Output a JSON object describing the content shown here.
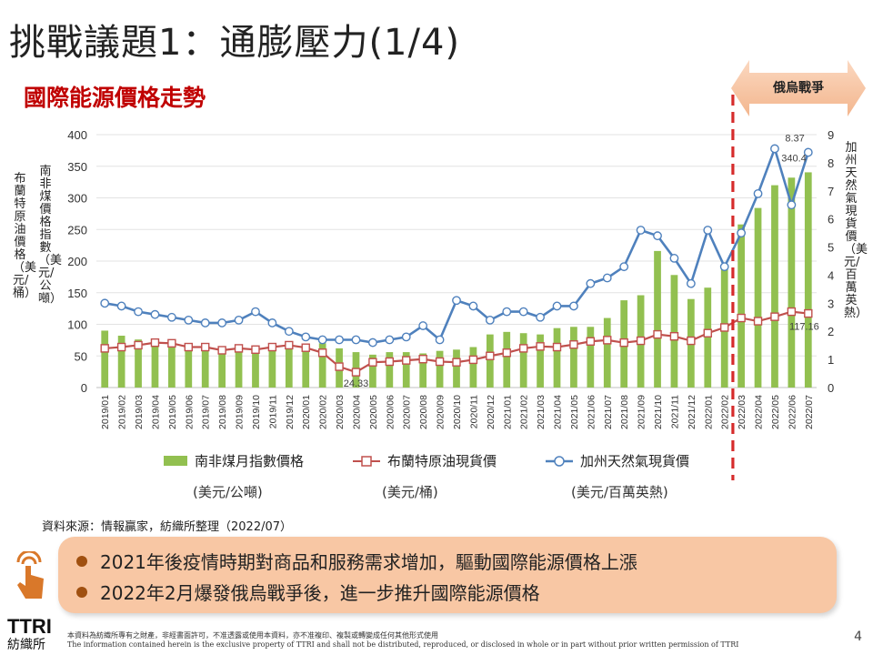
{
  "slide": {
    "title": "挑戰議題1：通膨壓力(1/4)",
    "subtitle": "國際能源價格走勢",
    "war_label": "俄烏戰爭",
    "left_axis_label_1": "布蘭特原油價格（美元/桶）",
    "left_axis_label_2": "南非煤價格指數（美元/公噸）",
    "right_axis_label": "加州天然氣現貨價（美元/百萬英熱）",
    "source": "資料來源：情報贏家，紡織所整理（2022/07）",
    "bullets": [
      "2021年後疫情時期對商品和服務需求增加，驅動國際能源價格上漲",
      "2022年2月爆發俄烏戰爭後，進一步推升國際能源價格"
    ],
    "logo": "TTRI",
    "logo_cn": "紡織所",
    "disclaimer_cn": "本資料為紡織所專有之財產，非經書面許可，不准透露或使用本資料，亦不准複印、複製或轉變成任何其他形式使用",
    "disclaimer_en": "The information contained herein is the exclusive property of TTRI and shall not be distributed, reproduced, or disclosed in whole or in part without prior written permission of TTRI",
    "page_number": "4",
    "colors": {
      "coal": "#92c050",
      "brent": "#c0504d",
      "gas": "#4f81bd",
      "title_red": "#c00000",
      "war_line": "#d62b2b"
    }
  },
  "chart_data": {
    "type": "bar+line",
    "categories": [
      "2019/01",
      "2019/02",
      "2019/03",
      "2019/04",
      "2019/05",
      "2019/06",
      "2019/07",
      "2019/08",
      "2019/09",
      "2019/10",
      "2019/11",
      "2019/12",
      "2020/01",
      "2020/02",
      "2020/03",
      "2020/04",
      "2020/05",
      "2020/06",
      "2020/07",
      "2020/08",
      "2020/09",
      "2020/10",
      "2020/11",
      "2020/12",
      "2021/01",
      "2021/02",
      "2021/03",
      "2021/04",
      "2021/05",
      "2021/06",
      "2021/07",
      "2021/08",
      "2021/09",
      "2021/10",
      "2021/11",
      "2021/12",
      "2022/01",
      "2022/02",
      "2022/03",
      "2022/04",
      "2022/05",
      "2022/06",
      "2022/07"
    ],
    "left_axis": {
      "ylim": [
        0,
        400
      ],
      "ticks": [
        "0",
        "50",
        "100",
        "150",
        "200",
        "250",
        "300",
        "350",
        "400"
      ]
    },
    "right_axis": {
      "ylim": [
        0,
        9
      ],
      "ticks": [
        "0",
        "1",
        "2",
        "3",
        "4",
        "5",
        "6",
        "7",
        "8",
        "9"
      ]
    },
    "series": [
      {
        "name": "南非煤月指數價格",
        "unit": "(美元/公噸)",
        "type": "bar",
        "axis": "left",
        "values": [
          90,
          82,
          76,
          76,
          72,
          68,
          66,
          64,
          62,
          66,
          62,
          62,
          64,
          70,
          62,
          56,
          52,
          56,
          56,
          54,
          58,
          60,
          64,
          84,
          88,
          86,
          84,
          94,
          96,
          96,
          110,
          138,
          146,
          216,
          178,
          140,
          158,
          188,
          258,
          284,
          320,
          332,
          340.4
        ]
      },
      {
        "name": "布蘭特原油現貨價",
        "unit": "(美元/桶)",
        "type": "line",
        "axis": "left",
        "values": [
          62,
          64,
          67,
          71,
          70,
          64,
          64,
          59,
          62,
          60,
          64,
          67,
          63,
          55,
          33,
          24.33,
          40,
          41,
          43,
          45,
          41,
          40,
          44,
          50,
          55,
          62,
          65,
          64,
          68,
          73,
          75,
          71,
          74,
          84,
          81,
          74,
          86,
          95,
          110,
          105,
          112,
          120,
          117.16
        ]
      },
      {
        "name": "加州天然氣現貨價",
        "unit": "(美元/百萬英熱)",
        "type": "line",
        "axis": "right",
        "values": [
          3.0,
          2.9,
          2.7,
          2.6,
          2.5,
          2.4,
          2.3,
          2.3,
          2.4,
          2.7,
          2.3,
          2.0,
          1.8,
          1.7,
          1.7,
          1.7,
          1.6,
          1.7,
          1.8,
          2.2,
          1.7,
          3.1,
          2.9,
          2.4,
          2.7,
          2.7,
          2.5,
          2.9,
          2.9,
          3.7,
          3.9,
          4.3,
          5.6,
          5.4,
          4.6,
          3.7,
          5.6,
          4.3,
          5.5,
          6.9,
          8.5,
          6.5,
          8.37
        ]
      }
    ],
    "data_labels": [
      {
        "series": "布蘭特原油現貨價",
        "category": "2020/04",
        "text": "24.33"
      },
      {
        "series": "南非煤月指數價格",
        "category": "2022/07",
        "text": "340.4"
      },
      {
        "series": "加州天然氣現貨價",
        "category": "2022/07",
        "text": "8.37"
      },
      {
        "series": "布蘭特原油現貨價",
        "category": "2022/07",
        "text": "117.16"
      }
    ],
    "event_marker": {
      "label": "俄烏戰爭",
      "category": "2022/02"
    },
    "legend_position": "bottom"
  }
}
